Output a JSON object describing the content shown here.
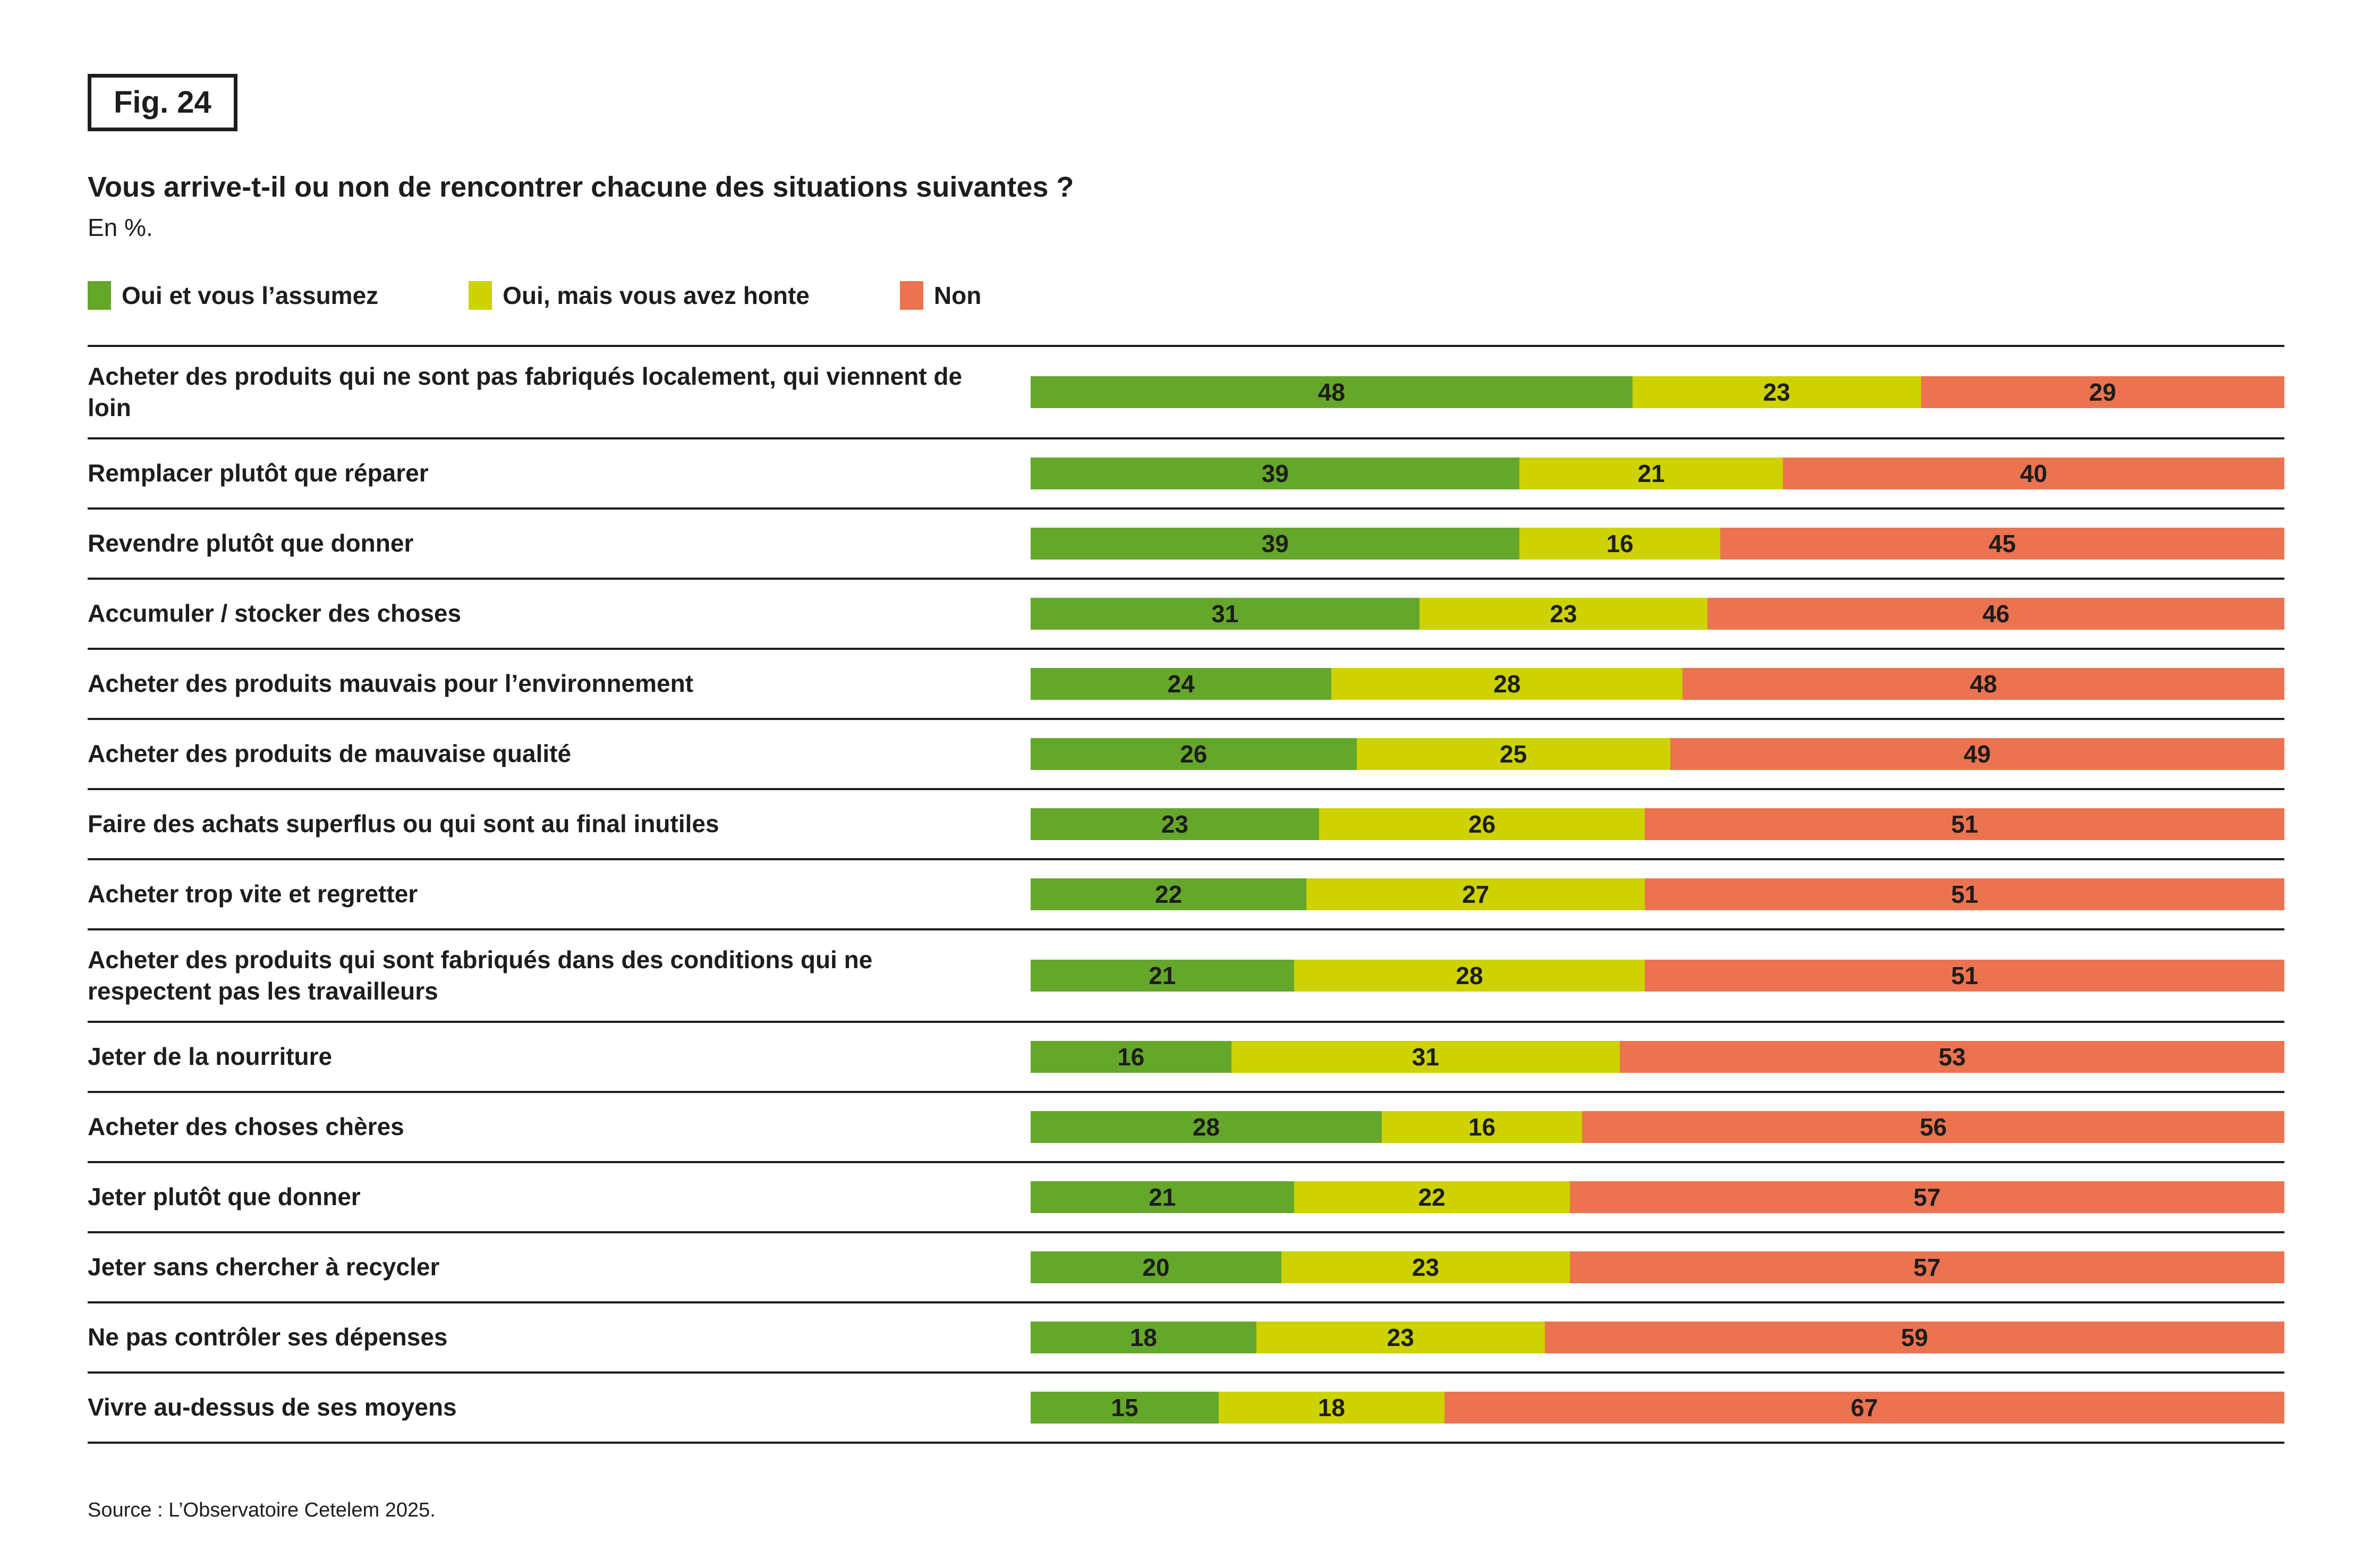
{
  "figure": {
    "label": "Fig. 24"
  },
  "header": {
    "title": "Vous arrive-t-il ou non de rencontrer chacune des situations suivantes ?",
    "subtitle": "En %."
  },
  "legend": [
    {
      "label": "Oui et vous l’assumez",
      "color": "#65A72A"
    },
    {
      "label": "Oui, mais vous avez honte",
      "color": "#CDD200"
    },
    {
      "label": "Non",
      "color": "#EC7350"
    }
  ],
  "source": "Source : L’Observatoire Cetelem 2025.",
  "chart_data": {
    "type": "bar",
    "orientation": "horizontal",
    "stacked": true,
    "unit": "%",
    "xlim": [
      0,
      100
    ],
    "title": "Vous arrive-t-il ou non de rencontrer chacune des situations suivantes ?",
    "categories": [
      "Acheter des produits qui ne sont pas fabriqués localement, qui viennent de loin",
      "Remplacer plutôt que réparer",
      "Revendre plutôt que donner",
      "Accumuler / stocker des choses",
      "Acheter des produits mauvais pour l’environnement",
      "Acheter des produits de mauvaise qualité",
      "Faire des achats superflus ou qui sont au final inutiles",
      "Acheter trop vite et regretter",
      "Acheter des produits qui sont fabriqués dans des conditions qui ne respectent pas les travailleurs",
      "Jeter de la nourriture",
      "Acheter des choses chères",
      "Jeter plutôt que donner",
      "Jeter sans chercher à recycler",
      "Ne pas contrôler ses dépenses",
      "Vivre au-dessus de ses moyens"
    ],
    "series": [
      {
        "name": "Oui et vous l’assumez",
        "color": "#65A72A",
        "values": [
          48,
          39,
          39,
          31,
          24,
          26,
          23,
          22,
          21,
          16,
          28,
          21,
          20,
          18,
          15
        ]
      },
      {
        "name": "Oui, mais vous avez honte",
        "color": "#CDD200",
        "values": [
          23,
          21,
          16,
          23,
          28,
          25,
          26,
          27,
          28,
          31,
          16,
          22,
          23,
          23,
          18
        ]
      },
      {
        "name": "Non",
        "color": "#EC7350",
        "values": [
          29,
          40,
          45,
          46,
          48,
          49,
          51,
          51,
          51,
          53,
          56,
          57,
          57,
          59,
          67
        ]
      }
    ],
    "legend_position": "top",
    "grid": false
  }
}
